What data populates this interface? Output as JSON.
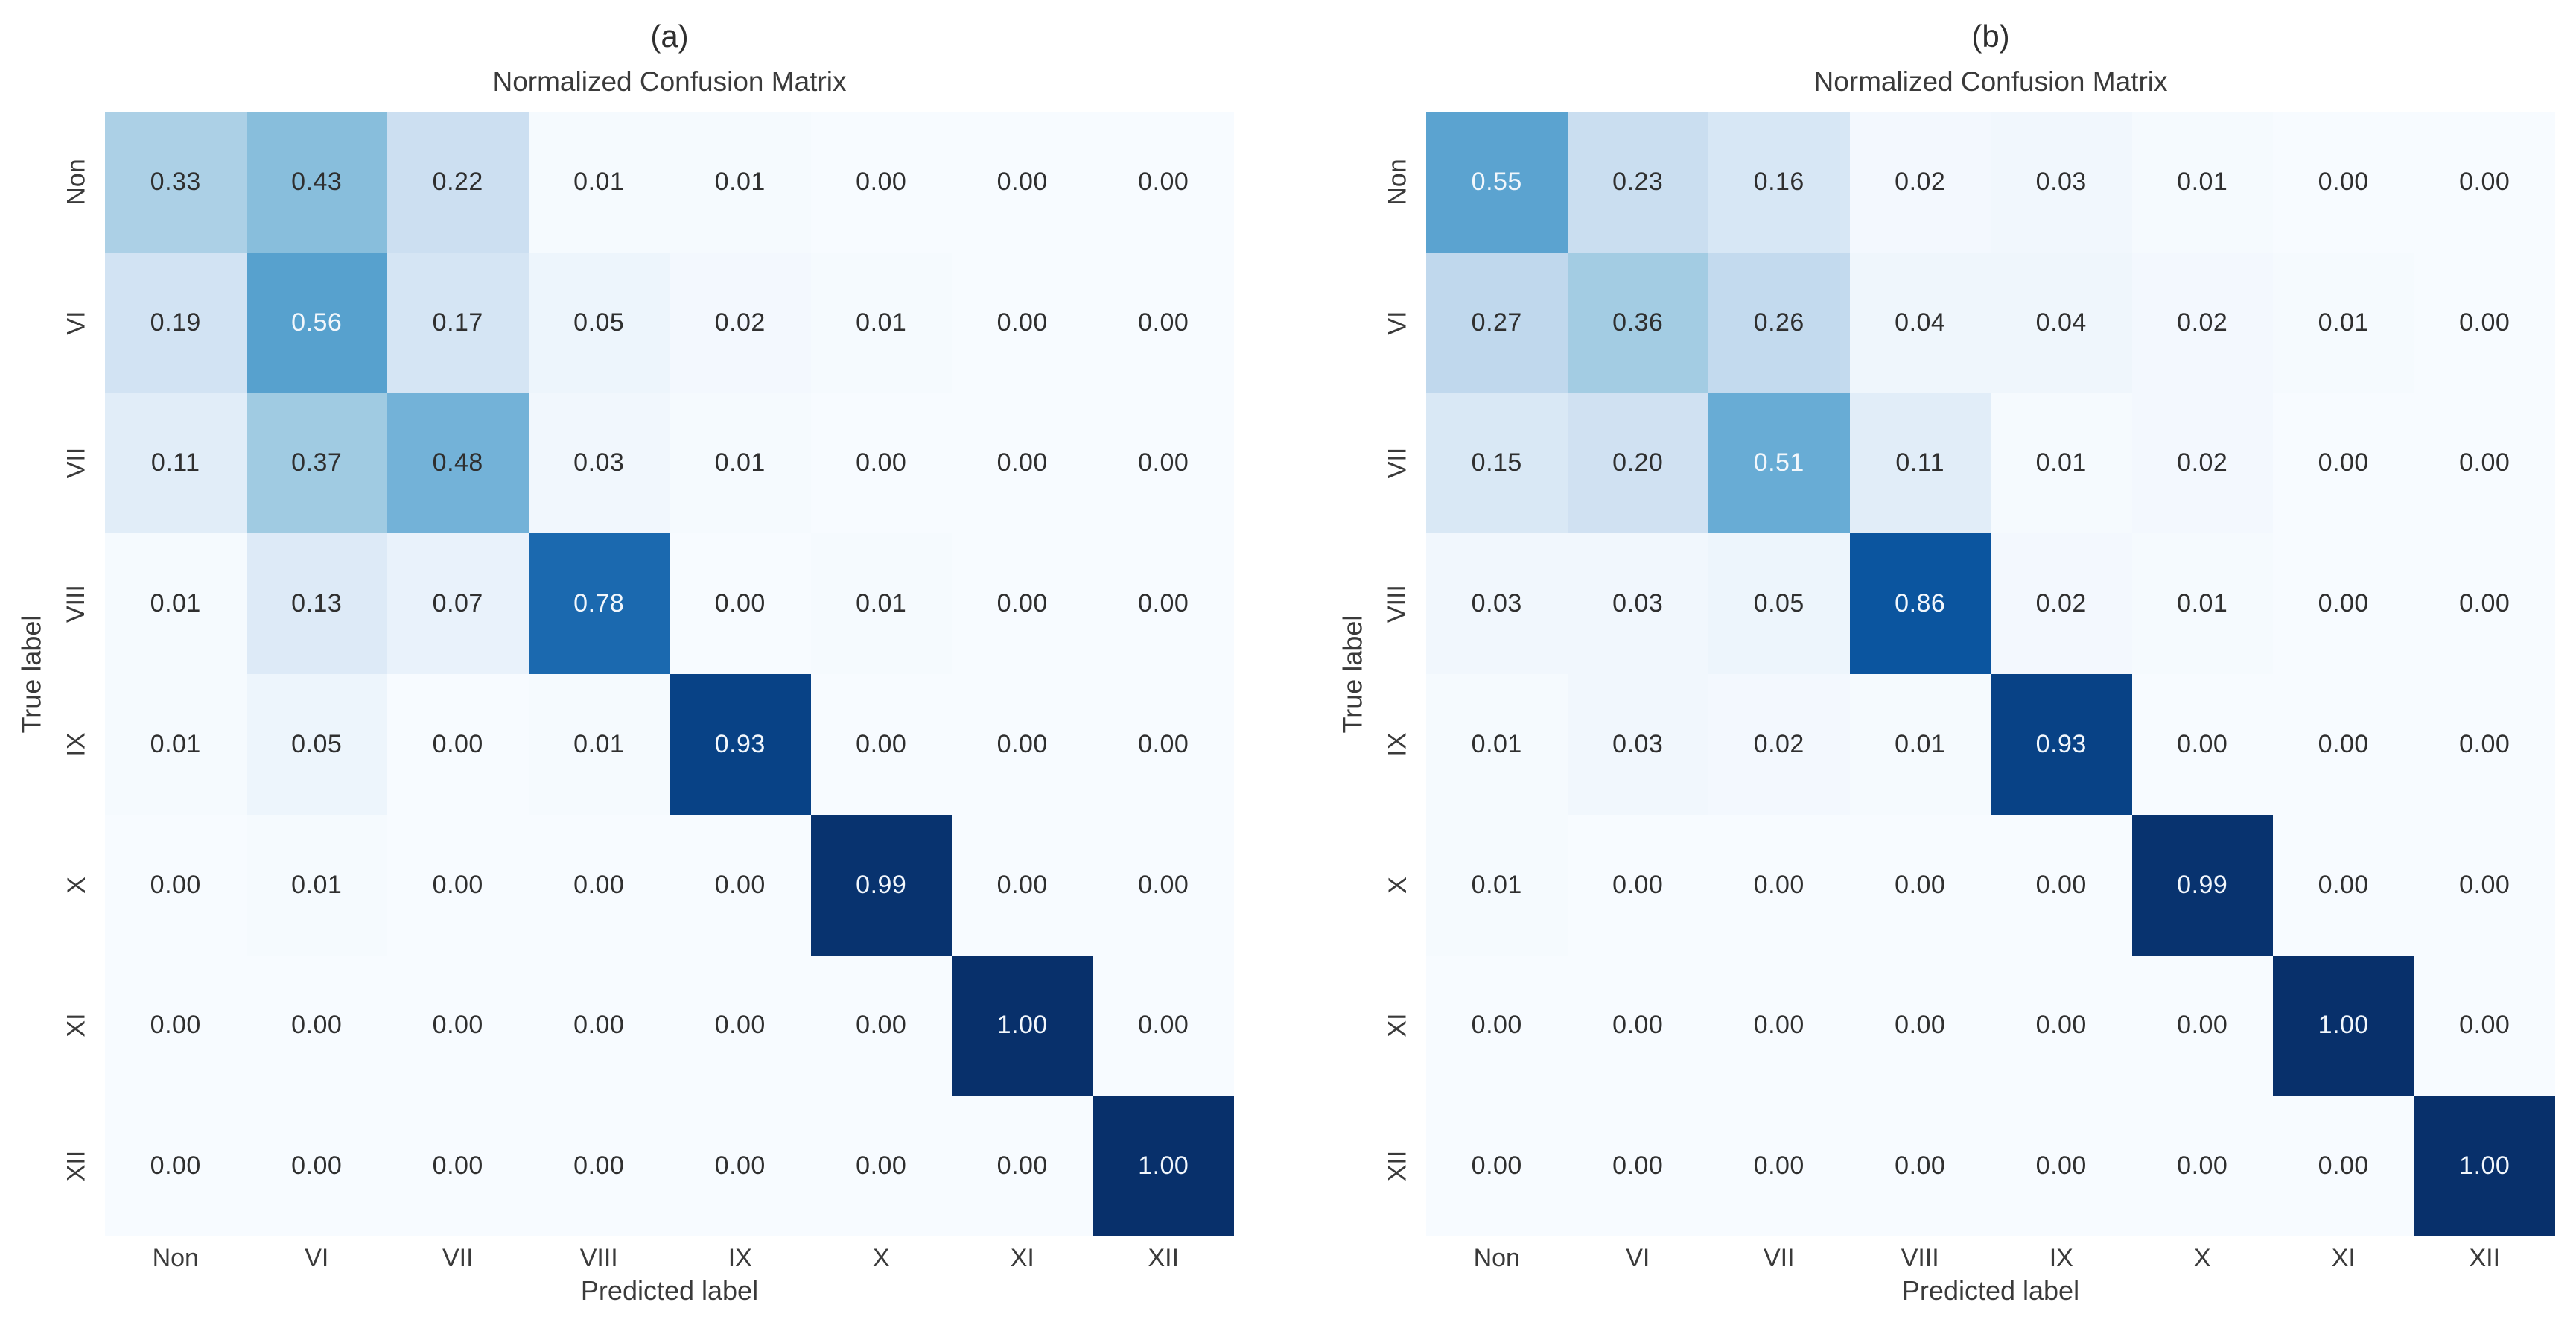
{
  "figure": {
    "background": "#ffffff",
    "colormap_name": "Blues",
    "colormap_stops": [
      [
        0.0,
        "#f7fbff"
      ],
      [
        0.125,
        "#deebf7"
      ],
      [
        0.25,
        "#c6dbef"
      ],
      [
        0.375,
        "#9ecae1"
      ],
      [
        0.5,
        "#6baed6"
      ],
      [
        0.625,
        "#4292c6"
      ],
      [
        0.75,
        "#2171b5"
      ],
      [
        0.875,
        "#08519c"
      ],
      [
        1.0,
        "#08306b"
      ]
    ],
    "text_color_dark": "#2f2f2f",
    "text_color_light": "#f2f7fc",
    "light_text_threshold": 0.5
  },
  "chart_data": [
    {
      "type": "heatmap",
      "panel_label": "(a)",
      "title": "Normalized Confusion Matrix",
      "xlabel": "Predicted label",
      "ylabel": "True label",
      "x_categories": [
        "Non",
        "VI",
        "VII",
        "VIII",
        "IX",
        "X",
        "XI",
        "XII"
      ],
      "y_categories": [
        "Non",
        "VI",
        "VII",
        "VIII",
        "IX",
        "X",
        "XI",
        "XII"
      ],
      "values": [
        [
          0.33,
          0.43,
          0.22,
          0.01,
          0.01,
          0.0,
          0.0,
          0.0
        ],
        [
          0.19,
          0.56,
          0.17,
          0.05,
          0.02,
          0.01,
          0.0,
          0.0
        ],
        [
          0.11,
          0.37,
          0.48,
          0.03,
          0.01,
          0.0,
          0.0,
          0.0
        ],
        [
          0.01,
          0.13,
          0.07,
          0.78,
          0.0,
          0.01,
          0.0,
          0.0
        ],
        [
          0.01,
          0.05,
          0.0,
          0.01,
          0.93,
          0.0,
          0.0,
          0.0
        ],
        [
          0.0,
          0.01,
          0.0,
          0.0,
          0.0,
          0.99,
          0.0,
          0.0
        ],
        [
          0.0,
          0.0,
          0.0,
          0.0,
          0.0,
          0.0,
          1.0,
          0.0
        ],
        [
          0.0,
          0.0,
          0.0,
          0.0,
          0.0,
          0.0,
          0.0,
          1.0
        ]
      ],
      "value_format": "two_decimals",
      "vmin": 0,
      "vmax": 1,
      "grid": false,
      "legend": "none"
    },
    {
      "type": "heatmap",
      "panel_label": "(b)",
      "title": "Normalized Confusion Matrix",
      "xlabel": "Predicted label",
      "ylabel": "True label",
      "x_categories": [
        "Non",
        "VI",
        "VII",
        "VIII",
        "IX",
        "X",
        "XI",
        "XII"
      ],
      "y_categories": [
        "Non",
        "VI",
        "VII",
        "VIII",
        "IX",
        "X",
        "XI",
        "XII"
      ],
      "values": [
        [
          0.55,
          0.23,
          0.16,
          0.02,
          0.03,
          0.01,
          0.0,
          0.0
        ],
        [
          0.27,
          0.36,
          0.26,
          0.04,
          0.04,
          0.02,
          0.01,
          0.0
        ],
        [
          0.15,
          0.2,
          0.51,
          0.11,
          0.01,
          0.02,
          0.0,
          0.0
        ],
        [
          0.03,
          0.03,
          0.05,
          0.86,
          0.02,
          0.01,
          0.0,
          0.0
        ],
        [
          0.01,
          0.03,
          0.02,
          0.01,
          0.93,
          0.0,
          0.0,
          0.0
        ],
        [
          0.01,
          0.0,
          0.0,
          0.0,
          0.0,
          0.99,
          0.0,
          0.0
        ],
        [
          0.0,
          0.0,
          0.0,
          0.0,
          0.0,
          0.0,
          1.0,
          0.0
        ],
        [
          0.0,
          0.0,
          0.0,
          0.0,
          0.0,
          0.0,
          0.0,
          1.0
        ]
      ],
      "value_format": "two_decimals",
      "vmin": 0,
      "vmax": 1,
      "grid": false,
      "legend": "none"
    }
  ]
}
